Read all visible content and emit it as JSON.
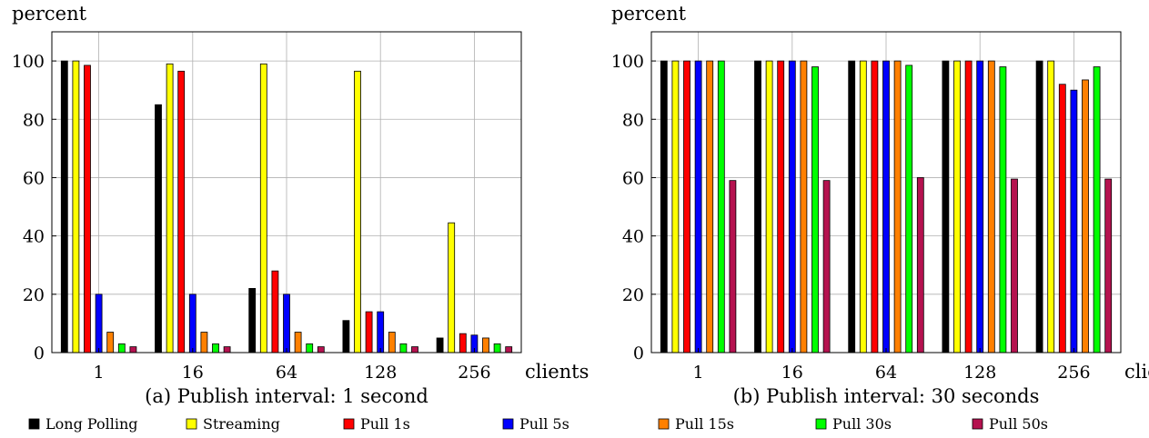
{
  "chart_data": [
    {
      "type": "bar",
      "caption": "(a) Publish interval: 1 second",
      "ylabel": "percent",
      "xlabel": "clients",
      "categories": [
        "1",
        "16",
        "64",
        "128",
        "256"
      ],
      "ylim": [
        0,
        110
      ],
      "yticks": [
        0,
        20,
        40,
        60,
        80,
        100
      ],
      "grid": true,
      "series": [
        {
          "name": "Long Polling",
          "values": [
            100,
            85,
            22,
            11,
            5
          ]
        },
        {
          "name": "Streaming",
          "values": [
            100,
            99,
            99,
            96.5,
            44.5
          ]
        },
        {
          "name": "Pull 1s",
          "values": [
            98.5,
            96.5,
            28,
            14,
            6.5
          ]
        },
        {
          "name": "Pull 5s",
          "values": [
            20,
            20,
            20,
            14,
            6
          ]
        },
        {
          "name": "Pull 15s",
          "values": [
            7,
            7,
            7,
            7,
            5
          ]
        },
        {
          "name": "Pull 30s",
          "values": [
            3,
            3,
            3,
            3,
            3
          ]
        },
        {
          "name": "Pull 50s",
          "values": [
            2,
            2,
            2,
            2,
            2
          ]
        }
      ]
    },
    {
      "type": "bar",
      "caption": "(b) Publish interval: 30 seconds",
      "ylabel": "percent",
      "xlabel": "clients",
      "categories": [
        "1",
        "16",
        "64",
        "128",
        "256"
      ],
      "ylim": [
        0,
        110
      ],
      "yticks": [
        0,
        20,
        40,
        60,
        80,
        100
      ],
      "grid": true,
      "series": [
        {
          "name": "Long Polling",
          "values": [
            100,
            100,
            100,
            100,
            100
          ]
        },
        {
          "name": "Streaming",
          "values": [
            100,
            100,
            100,
            100,
            100
          ]
        },
        {
          "name": "Pull 1s",
          "values": [
            100,
            100,
            100,
            100,
            92
          ]
        },
        {
          "name": "Pull 5s",
          "values": [
            100,
            100,
            100,
            100,
            90
          ]
        },
        {
          "name": "Pull 15s",
          "values": [
            100,
            100,
            100,
            100,
            93.5
          ]
        },
        {
          "name": "Pull 30s",
          "values": [
            100,
            98,
            98.5,
            98,
            98
          ]
        },
        {
          "name": "Pull 50s",
          "values": [
            59,
            59,
            60,
            59.5,
            59.5
          ]
        }
      ]
    }
  ],
  "legend": {
    "placement": "bottom",
    "items": [
      {
        "label": "Long Polling",
        "color": "#000000"
      },
      {
        "label": "Streaming",
        "color": "#ffff00"
      },
      {
        "label": "Pull 1s",
        "color": "#ff0000"
      },
      {
        "label": "Pull 5s",
        "color": "#0000ff"
      },
      {
        "label": "Pull 15s",
        "color": "#ff8000"
      },
      {
        "label": "Pull 30s",
        "color": "#00ff00"
      },
      {
        "label": "Pull 50s",
        "color": "#b5124f"
      }
    ]
  }
}
